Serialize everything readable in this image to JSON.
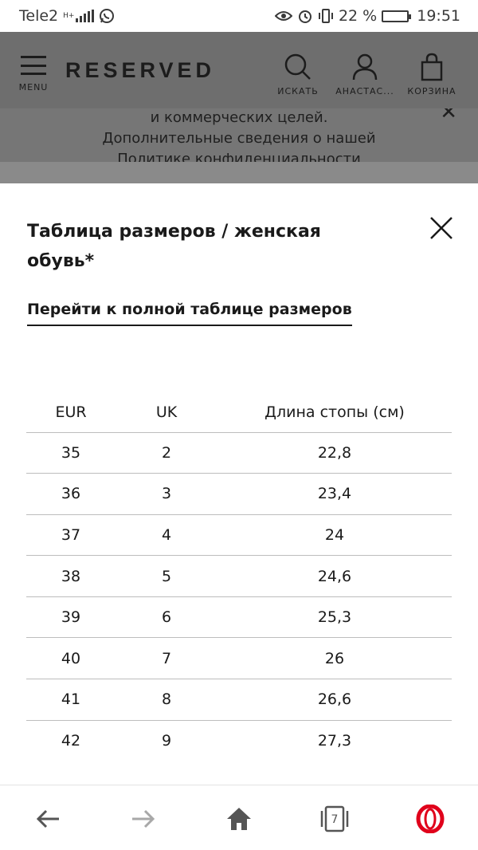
{
  "status_bar": {
    "carrier": "Tele2",
    "network_small": "H+",
    "battery_percent": "22 %",
    "battery_level": 0.22,
    "time": "19:51"
  },
  "header": {
    "menu_label": "MENU",
    "brand": "RESERVED",
    "search_label": "ИСКАТЬ",
    "account_label": "АНАСТАС...",
    "cart_label": "КОРЗИНА"
  },
  "cookie_banner": {
    "line1": "и коммерческих целей.",
    "line2": "Дополнительные сведения о нашей",
    "line3": "Политике конфиденциальности"
  },
  "size_modal": {
    "title": "Таблица размеров / женская обувь*",
    "full_table_link": "Перейти к полной таблице размеров",
    "columns": [
      "EUR",
      "UK",
      "Длина стопы (см)"
    ],
    "rows": [
      [
        "35",
        "2",
        "22,8"
      ],
      [
        "36",
        "3",
        "23,4"
      ],
      [
        "37",
        "4",
        "24"
      ],
      [
        "38",
        "5",
        "24,6"
      ],
      [
        "39",
        "6",
        "25,3"
      ],
      [
        "40",
        "7",
        "26"
      ],
      [
        "41",
        "8",
        "26,6"
      ],
      [
        "42",
        "9",
        "27,3"
      ]
    ]
  },
  "browser_bar": {
    "back_icon": "back-arrow-icon",
    "forward_icon": "forward-arrow-icon",
    "home_icon": "home-icon",
    "tabs_count": "7",
    "opera_color": "#e0001b"
  }
}
